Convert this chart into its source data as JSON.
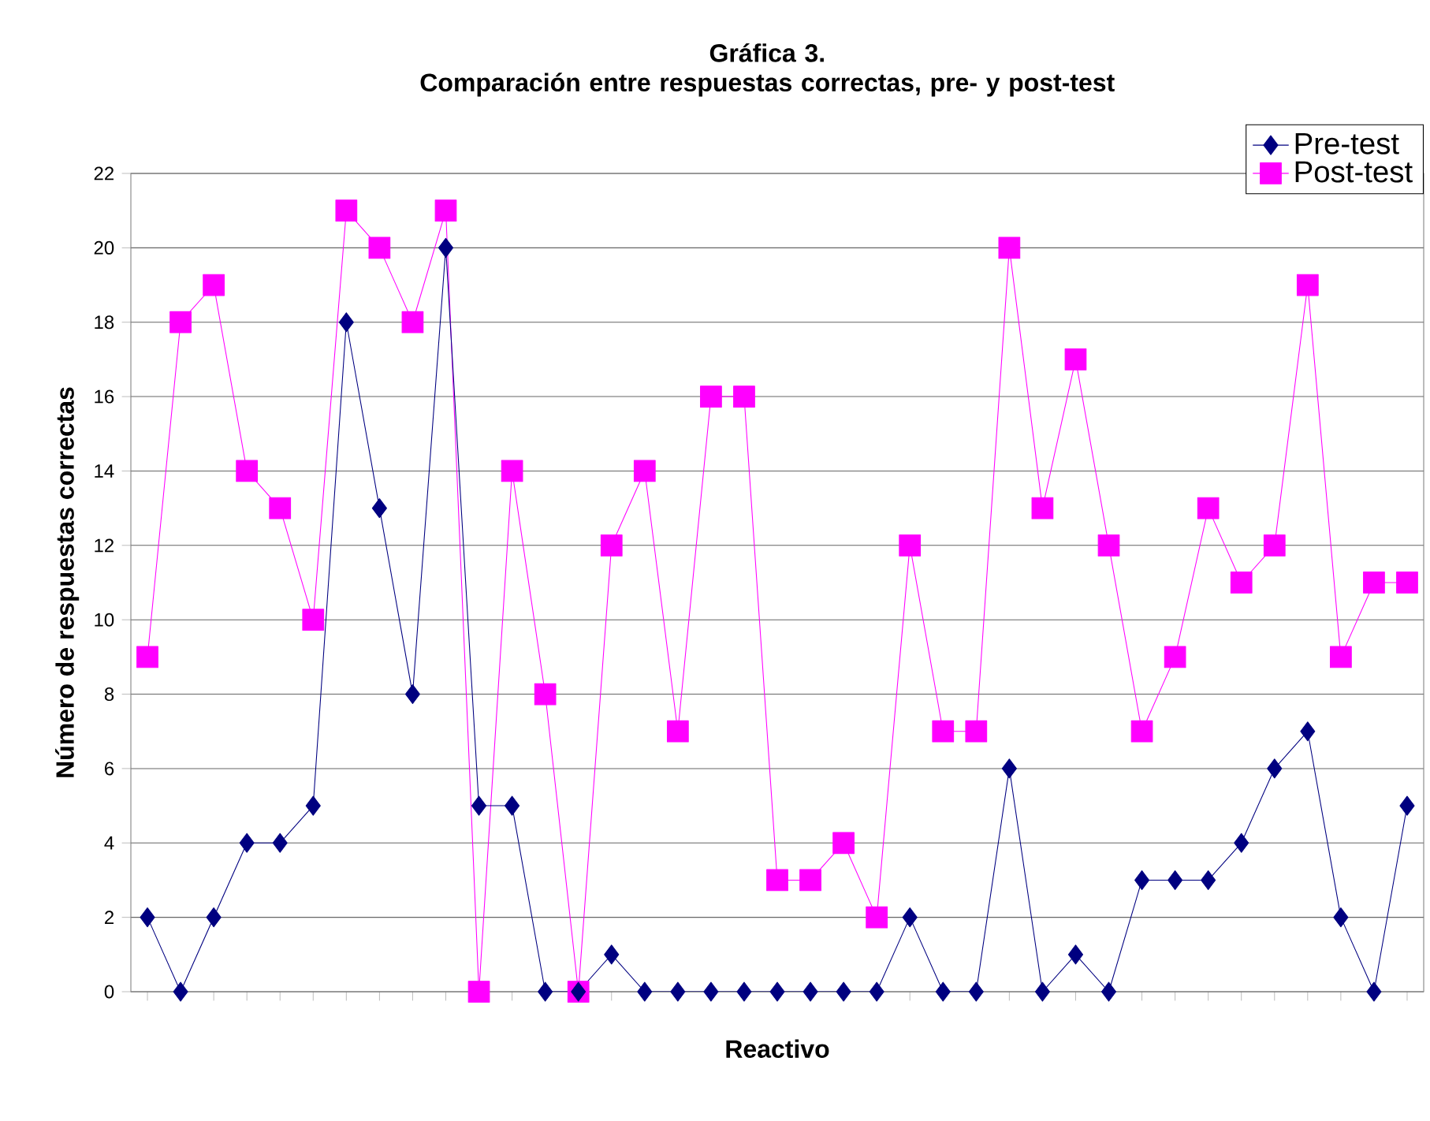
{
  "chart_data": {
    "type": "line",
    "title": "Gráfica 3.\nComparación entre respuestas correctas, pre- y post-test",
    "xlabel": "Reactivo",
    "ylabel": "Número de respuestas correctas",
    "categories": [
      null,
      null,
      null,
      null,
      null,
      null,
      null,
      null,
      null,
      null,
      null,
      null,
      null,
      null,
      null,
      null,
      null,
      null,
      null,
      null,
      null,
      null,
      null,
      null,
      null,
      null,
      null,
      null,
      null,
      null,
      null,
      null,
      null,
      null,
      null,
      null,
      null,
      null,
      null
    ],
    "series": [
      {
        "name": "Pre-test",
        "color": "#000080",
        "marker": "diamond",
        "values": [
          2,
          0,
          2,
          4,
          4,
          5,
          18,
          13,
          8,
          20,
          5,
          5,
          0,
          0,
          1,
          0,
          0,
          0,
          0,
          0,
          0,
          0,
          0,
          2,
          0,
          0,
          6,
          0,
          1,
          0,
          3,
          3,
          3,
          4,
          6,
          7,
          2,
          0,
          5
        ]
      },
      {
        "name": "Post-test",
        "color": "#ff00ff",
        "marker": "square",
        "values": [
          9,
          18,
          19,
          14,
          13,
          10,
          21,
          20,
          18,
          21,
          0,
          14,
          8,
          0,
          12,
          14,
          7,
          16,
          16,
          3,
          3,
          4,
          2,
          12,
          7,
          7,
          20,
          13,
          17,
          12,
          7,
          9,
          13,
          11,
          12,
          19,
          9,
          11,
          11
        ]
      }
    ],
    "ylim": [
      0,
      22
    ],
    "yticks": [
      0,
      2,
      4,
      6,
      8,
      10,
      12,
      14,
      16,
      18,
      20,
      22
    ],
    "grid": "y",
    "legend": "top right"
  }
}
